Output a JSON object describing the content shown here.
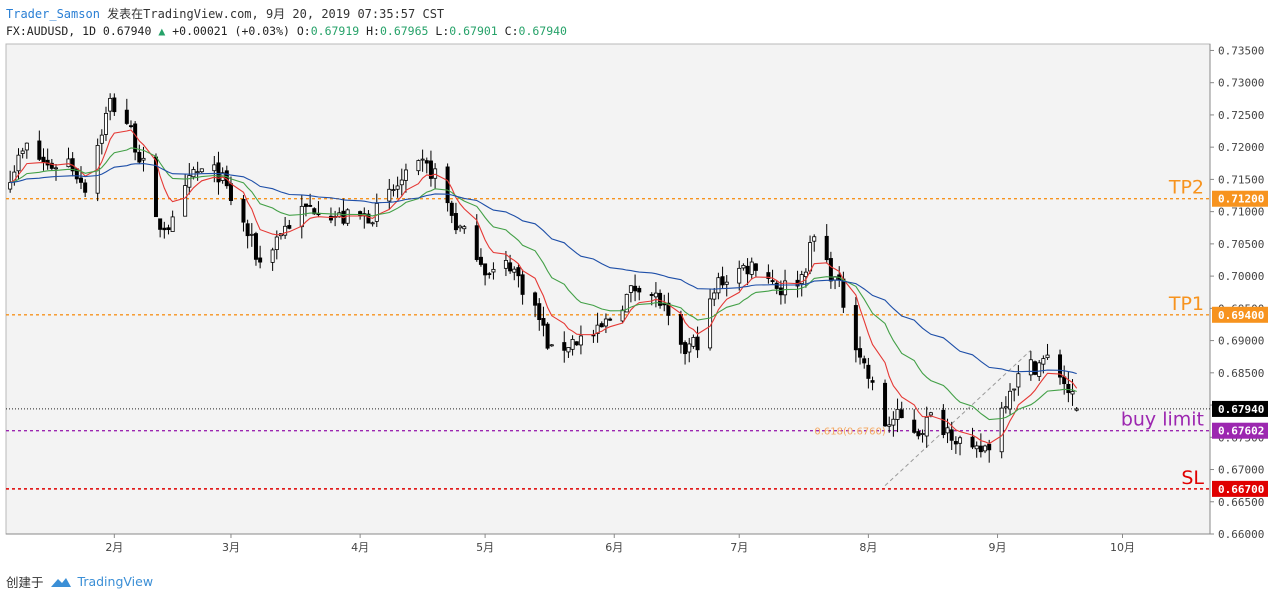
{
  "header": {
    "author": "Trader_Samson",
    "published": "发表在TradingView.com, 9月 20, 2019 07:35:57 CST",
    "symbol_line": "FX:AUDUSD, 1D 0.67940",
    "change": "+0.00021 (+0.03%)",
    "ohlc": {
      "O_label": "O:",
      "O": "0.67919",
      "H_label": "H:",
      "H": "0.67965",
      "L_label": "L:",
      "L": "0.67901",
      "C_label": "C:",
      "C": "0.67940"
    }
  },
  "footer": {
    "created_with": "创建于",
    "brand": "TradingView"
  },
  "colors": {
    "up": "#ffffff",
    "down": "#000000",
    "candle_outline": "#000000",
    "ema_fast": "#e53935",
    "ema_mid": "#43a047",
    "ema_slow": "#1e4fa8",
    "tp": "#f7931e",
    "buy_limit": "#9c27b0",
    "sl": "#e00000",
    "plot_bg": "#f3f3f3"
  },
  "chart_data": {
    "type": "candlestick",
    "symbol": "FX:AUDUSD",
    "timeframe": "1D",
    "ylim": [
      0.66,
      0.736
    ],
    "y_ticks": [
      "0.73500",
      "0.73000",
      "0.72500",
      "0.72000",
      "0.71500",
      "0.71000",
      "0.70500",
      "0.70000",
      "0.69500",
      "0.69000",
      "0.68500",
      "0.68000",
      "0.67500",
      "0.67000",
      "0.66500",
      "0.66000"
    ],
    "x_ticks": [
      {
        "label": "2月",
        "date": "2019-02-01"
      },
      {
        "label": "3月",
        "date": "2019-03-01"
      },
      {
        "label": "4月",
        "date": "2019-04-01"
      },
      {
        "label": "5月",
        "date": "2019-05-01"
      },
      {
        "label": "6月",
        "date": "2019-06-01"
      },
      {
        "label": "7月",
        "date": "2019-07-01"
      },
      {
        "label": "8月",
        "date": "2019-08-01"
      },
      {
        "label": "9月",
        "date": "2019-09-01"
      },
      {
        "label": "10月",
        "date": "2019-10-01"
      }
    ],
    "x_range": [
      "2019-01-06",
      "2019-10-22"
    ],
    "price_path": [
      [
        "2019-01-06",
        0.715
      ],
      [
        "2019-01-11",
        0.72
      ],
      [
        "2019-01-16",
        0.717
      ],
      [
        "2019-01-21",
        0.718
      ],
      [
        "2019-01-25",
        0.714
      ],
      [
        "2019-01-31",
        0.727
      ],
      [
        "2019-02-04",
        0.724
      ],
      [
        "2019-02-08",
        0.717
      ],
      [
        "2019-02-11",
        0.708
      ],
      [
        "2019-02-15",
        0.708
      ],
      [
        "2019-02-20",
        0.716
      ],
      [
        "2019-02-26",
        0.716
      ],
      [
        "2019-03-04",
        0.708
      ],
      [
        "2019-03-08",
        0.702
      ],
      [
        "2019-03-13",
        0.707
      ],
      [
        "2019-03-18",
        0.71
      ],
      [
        "2019-03-22",
        0.711
      ],
      [
        "2019-03-27",
        0.709
      ],
      [
        "2019-04-01",
        0.709
      ],
      [
        "2019-04-05",
        0.71
      ],
      [
        "2019-04-10",
        0.714
      ],
      [
        "2019-04-16",
        0.717
      ],
      [
        "2019-04-19",
        0.716
      ],
      [
        "2019-04-24",
        0.708
      ],
      [
        "2019-04-29",
        0.704
      ],
      [
        "2019-05-02",
        0.7
      ],
      [
        "2019-05-07",
        0.702
      ],
      [
        "2019-05-13",
        0.695
      ],
      [
        "2019-05-17",
        0.688
      ],
      [
        "2019-05-22",
        0.69
      ],
      [
        "2019-05-28",
        0.691
      ],
      [
        "2019-06-03",
        0.696
      ],
      [
        "2019-06-07",
        0.699
      ],
      [
        "2019-06-12",
        0.696
      ],
      [
        "2019-06-17",
        0.688
      ],
      [
        "2019-06-21",
        0.69
      ],
      [
        "2019-06-26",
        0.699
      ],
      [
        "2019-07-01",
        0.701
      ],
      [
        "2019-07-05",
        0.702
      ],
      [
        "2019-07-11",
        0.698
      ],
      [
        "2019-07-16",
        0.7
      ],
      [
        "2019-07-19",
        0.706
      ],
      [
        "2019-07-25",
        0.698
      ],
      [
        "2019-07-30",
        0.688
      ],
      [
        "2019-08-05",
        0.677
      ],
      [
        "2019-08-08",
        0.678
      ],
      [
        "2019-08-13",
        0.676
      ],
      [
        "2019-08-16",
        0.678
      ],
      [
        "2019-08-21",
        0.676
      ],
      [
        "2019-08-26",
        0.672
      ],
      [
        "2019-08-30",
        0.674
      ],
      [
        "2019-09-04",
        0.683
      ],
      [
        "2019-09-09",
        0.686
      ],
      [
        "2019-09-13",
        0.687
      ],
      [
        "2019-09-16",
        0.685
      ],
      [
        "2019-09-20",
        0.6794
      ]
    ],
    "ema_fast_last": 0.6825,
    "ema_mid_last": 0.68,
    "ema_slow_last": 0.6883,
    "dashed_trend": {
      "from": [
        "2019-08-05",
        0.6675
      ],
      "to": [
        "2019-09-09",
        0.6885
      ]
    },
    "levels": [
      {
        "name": "TP2",
        "label": "TP2",
        "price": 0.712,
        "price_label": "0.71200",
        "color_key": "tp"
      },
      {
        "name": "TP1",
        "label": "TP1",
        "price": 0.694,
        "price_label": "0.69400",
        "color_key": "tp"
      },
      {
        "name": "buy limit",
        "label": "buy limit",
        "price": 0.67602,
        "price_label": "0.67602",
        "color_key": "buy_limit"
      },
      {
        "name": "SL",
        "label": "SL",
        "price": 0.667,
        "price_label": "0.66700",
        "color_key": "sl"
      }
    ],
    "last_price": {
      "price": 0.6794,
      "label": "0.67940"
    },
    "fib_label": "0.618(0.6760)"
  }
}
